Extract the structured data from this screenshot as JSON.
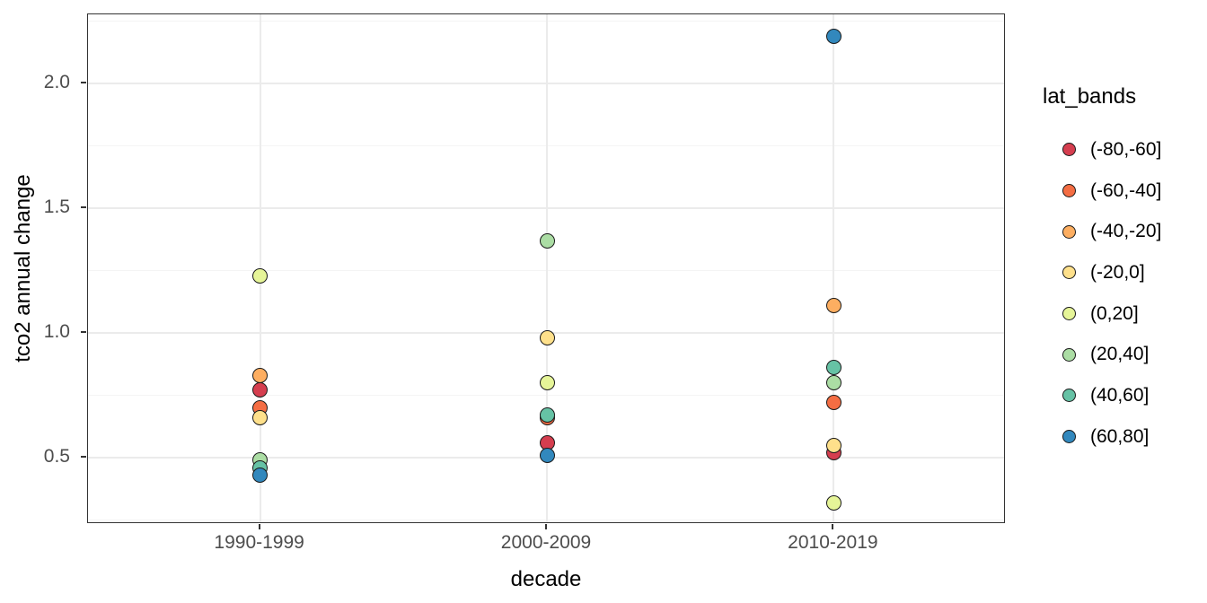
{
  "figure": {
    "background": "#FFFFFF",
    "panel_border_color": "#333333",
    "grid_major_color": "#EBEBEB",
    "grid_minor_color": "#F4F4F4",
    "tick_color": "#333333",
    "tick_label_color": "#4D4D4D",
    "point_stroke_color": "#1A1A1A"
  },
  "chart_data": {
    "type": "scatter",
    "title": "",
    "xlabel": "decade",
    "ylabel": "tco2 annual change",
    "legend_title": "lat_bands",
    "legend_position": "right",
    "grid": true,
    "categories": [
      "1990-1999",
      "2000-2009",
      "2010-2019"
    ],
    "y_ticks": [
      0.5,
      1.0,
      1.5,
      2.0
    ],
    "y_tick_labels": [
      "0.5",
      "1.0",
      "1.5",
      "2.0"
    ],
    "y_minor_ticks": [
      0.25,
      0.75,
      1.25,
      1.75,
      2.25
    ],
    "ylim": [
      0.234,
      2.277
    ],
    "series": [
      {
        "name": "(-80,-60]",
        "color": "#D53E4F",
        "values": [
          0.77,
          0.56,
          0.52
        ]
      },
      {
        "name": "(-60,-40]",
        "color": "#F46D43",
        "values": [
          0.7,
          0.66,
          0.72
        ]
      },
      {
        "name": "(-40,-20]",
        "color": "#FDAE61",
        "values": [
          0.83,
          null,
          1.11
        ]
      },
      {
        "name": "(-20,0]",
        "color": "#FEE08B",
        "values": [
          0.66,
          0.98,
          0.55
        ]
      },
      {
        "name": "(0,20]",
        "color": "#E6F598",
        "values": [
          1.23,
          0.8,
          0.32
        ]
      },
      {
        "name": "(20,40]",
        "color": "#ABDDA4",
        "values": [
          0.49,
          1.37,
          0.8
        ]
      },
      {
        "name": "(40,60]",
        "color": "#66C2A5",
        "values": [
          0.46,
          0.67,
          0.86
        ]
      },
      {
        "name": "(60,80]",
        "color": "#3288BD",
        "values": [
          0.43,
          0.51,
          2.19
        ]
      }
    ]
  }
}
